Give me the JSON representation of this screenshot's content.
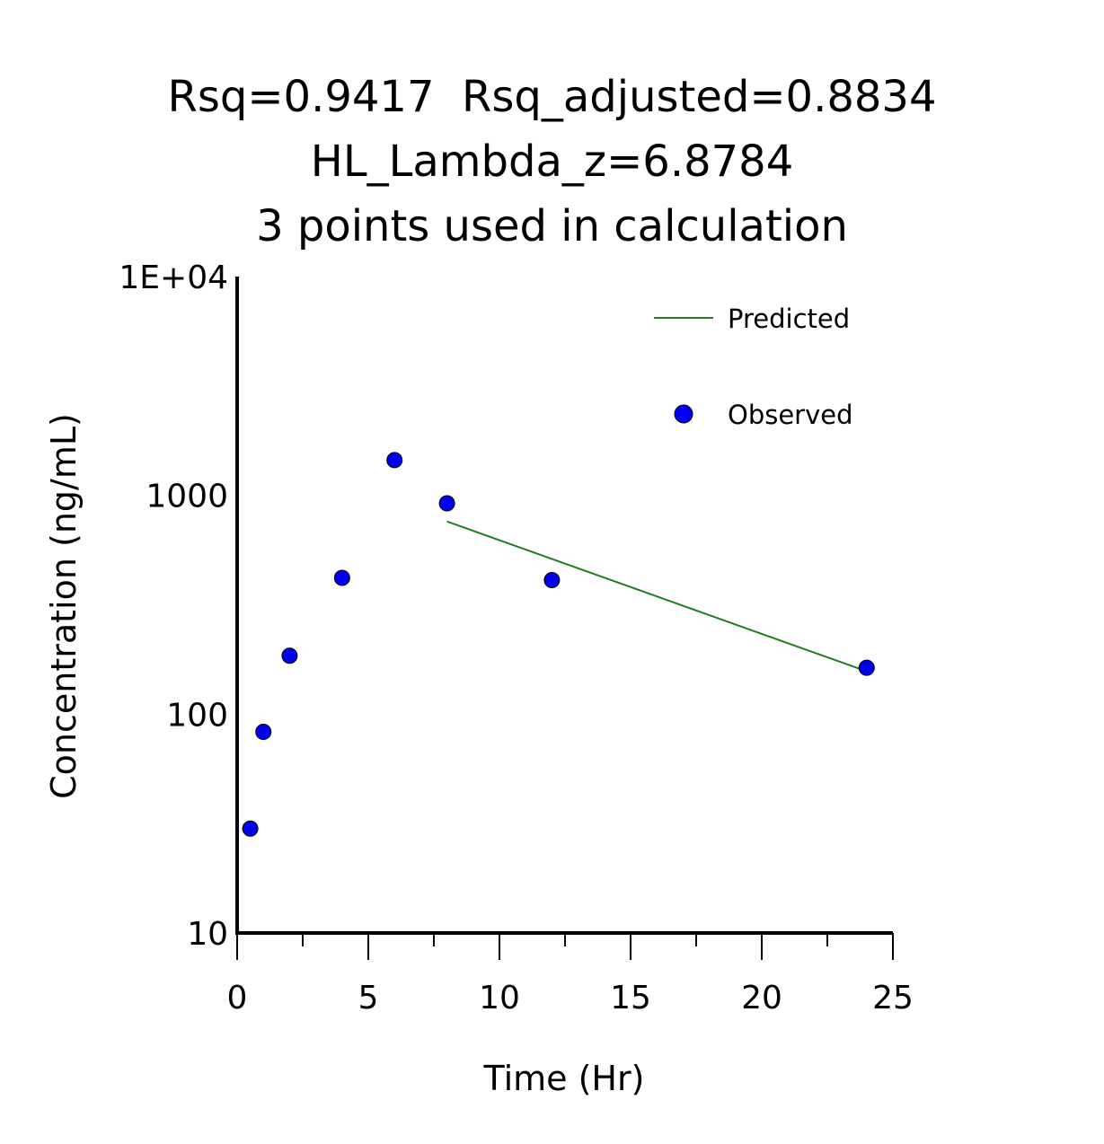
{
  "chart_data": {
    "type": "scatter",
    "title_lines": [
      "Rsq=0.9417  Rsq_adjusted=0.8834",
      "HL_Lambda_z=6.8784",
      "3 points used in calculation"
    ],
    "xlabel": "Time (Hr)",
    "ylabel": "Concentration (ng/mL)",
    "xlim": [
      0,
      25
    ],
    "ylim": [
      10,
      10000
    ],
    "yscale": "log",
    "x_ticks": [
      0,
      5,
      10,
      15,
      20,
      25
    ],
    "x_tick_labels": [
      "0",
      "5",
      "10",
      "15",
      "20",
      "25"
    ],
    "x_minor_ticks": [
      2.5,
      7.5,
      12.5,
      17.5,
      22.5
    ],
    "y_ticks": [
      10,
      100,
      1000,
      10000
    ],
    "y_tick_labels": [
      "10",
      "100",
      "1000",
      "1E+04"
    ],
    "grid": false,
    "legend_position": "top-right",
    "series": [
      {
        "name": "Predicted",
        "kind": "line",
        "color": "#1f7f1f",
        "x": [
          8,
          24
        ],
        "y": [
          760,
          157
        ]
      },
      {
        "name": "Observed",
        "kind": "markers",
        "color": "#0000ee",
        "x": [
          0.5,
          1,
          2,
          4,
          6,
          8,
          12,
          24
        ],
        "y": [
          30,
          83,
          185,
          420,
          1450,
          920,
          410,
          163
        ]
      }
    ]
  }
}
